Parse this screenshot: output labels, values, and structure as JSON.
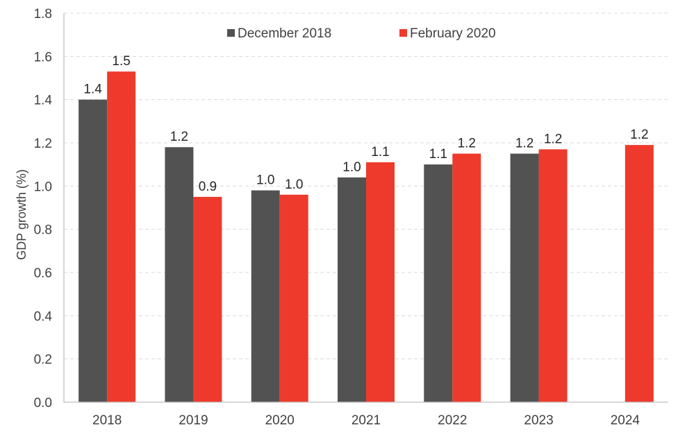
{
  "chart_data": {
    "type": "bar",
    "title": "",
    "xlabel": "",
    "ylabel": "GDP growth (%)",
    "ylim": [
      0,
      1.8
    ],
    "ytick_step": 0.2,
    "yticks": [
      "0.0",
      "0.2",
      "0.4",
      "0.6",
      "0.8",
      "1.0",
      "1.2",
      "1.4",
      "1.6",
      "1.8"
    ],
    "grid": true,
    "legend_position": "top-center",
    "categories": [
      "2018",
      "2019",
      "2020",
      "2021",
      "2022",
      "2023",
      "2024"
    ],
    "series": [
      {
        "name": "December 2018",
        "color": "#525252",
        "values": [
          1.4,
          1.18,
          0.98,
          1.04,
          1.1,
          1.15,
          null
        ],
        "labels": [
          "1.4",
          "1.2",
          "1.0",
          "1.0",
          "1.1",
          "1.2",
          null
        ]
      },
      {
        "name": "February 2020",
        "color": "#ee3a2c",
        "values": [
          1.53,
          0.95,
          0.96,
          1.11,
          1.15,
          1.17,
          1.19
        ],
        "labels": [
          "1.5",
          "0.9",
          "1.0",
          "1.1",
          "1.2",
          "1.2",
          "1.2"
        ]
      }
    ]
  }
}
